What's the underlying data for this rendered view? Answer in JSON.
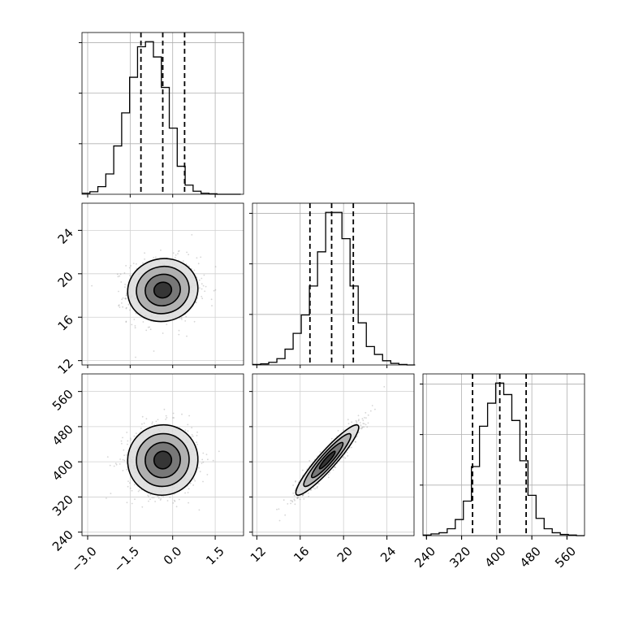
{
  "chart_data": {
    "type": "corner",
    "variables": [
      {
        "ticks": [
          -3.0,
          -1.5,
          0.0,
          1.5
        ],
        "tick_labels": [
          "−3.0",
          "−1.5",
          "0.0",
          "1.5"
        ],
        "range": [
          -3.2,
          2.5
        ]
      },
      {
        "ticks": [
          12,
          16,
          20,
          24
        ],
        "tick_labels": [
          "12",
          "16",
          "20",
          "24"
        ],
        "range": [
          11.6,
          26.5
        ]
      },
      {
        "ticks": [
          240,
          320,
          400,
          480,
          560
        ],
        "tick_labels": [
          "240",
          "320",
          "400",
          "480",
          "560"
        ],
        "range": [
          232,
          600
        ]
      }
    ],
    "histograms": [
      {
        "bin_edges": [
          -3.2,
          -2.92,
          -2.64,
          -2.36,
          -2.08,
          -1.8,
          -1.52,
          -1.24,
          -0.96,
          -0.68,
          -0.4,
          -0.12,
          0.16,
          0.44,
          0.72,
          1.0,
          1.28,
          1.56,
          1.84,
          2.12,
          2.4
        ],
        "counts": [
          2,
          5,
          15,
          40,
          95,
          160,
          230,
          290,
          300,
          270,
          210,
          130,
          55,
          18,
          6,
          2,
          1,
          0,
          0,
          0
        ],
        "quantiles": [
          -1.12,
          -0.35,
          0.42
        ]
      },
      {
        "bin_edges": [
          11.6,
          12.35,
          13.1,
          13.85,
          14.6,
          15.35,
          16.1,
          16.85,
          17.6,
          18.35,
          19.1,
          19.85,
          20.6,
          21.35,
          22.1,
          22.85,
          23.6,
          24.35,
          25.1,
          25.85,
          26.6
        ],
        "counts": [
          1,
          2,
          5,
          12,
          30,
          60,
          95,
          150,
          215,
          290,
          290,
          240,
          150,
          80,
          35,
          20,
          8,
          3,
          1,
          0
        ],
        "quantiles": [
          16.9,
          18.9,
          20.9
        ]
      },
      {
        "bin_edges": [
          232,
          250.4,
          268.8,
          287.2,
          305.6,
          324,
          342.4,
          360.8,
          379.2,
          397.6,
          416,
          434.4,
          452.8,
          471.2,
          489.6,
          508,
          526.4,
          544.8,
          563.2,
          581.6,
          600
        ],
        "counts": [
          1,
          3,
          5,
          12,
          28,
          60,
          120,
          190,
          230,
          265,
          245,
          200,
          130,
          70,
          30,
          12,
          5,
          2,
          1,
          0
        ],
        "quantiles": [
          345,
          407,
          467
        ]
      }
    ],
    "joint_2d": [
      {
        "pair": [
          0,
          1
        ],
        "mean": [
          -0.35,
          18.5
        ],
        "sd": [
          0.62,
          1.45
        ],
        "corr": 0.05
      },
      {
        "pair": [
          0,
          2
        ],
        "mean": [
          -0.35,
          404
        ],
        "sd": [
          0.62,
          40
        ],
        "corr": 0.02
      },
      {
        "pair": [
          1,
          2
        ],
        "mean": [
          18.5,
          404
        ],
        "sd": [
          1.45,
          40
        ],
        "corr": 0.93
      }
    ],
    "contour_levels_sigma": [
      0.5,
      1.0,
      1.5,
      2.0
    ],
    "grid": true,
    "title": "",
    "xlabel": "",
    "ylabel": ""
  }
}
